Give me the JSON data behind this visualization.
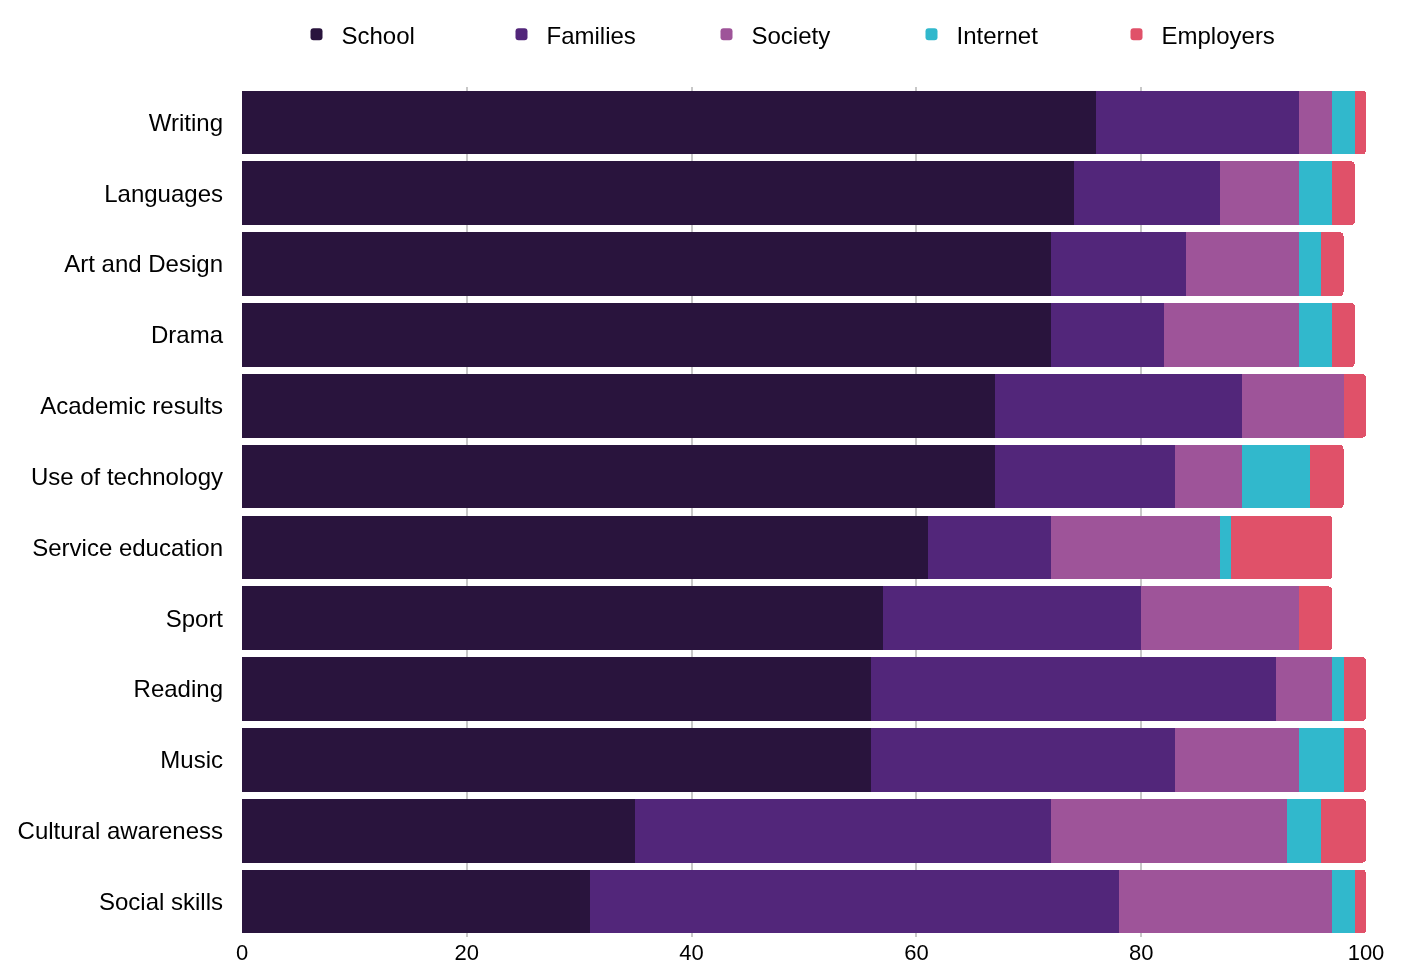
{
  "chart_data": {
    "type": "bar",
    "orientation": "horizontal",
    "stacked": true,
    "categories": [
      "Writing",
      "Languages",
      "Art and Design",
      "Drama",
      "Academic results",
      "Use of technology",
      "Service education",
      "Sport",
      "Reading",
      "Music",
      "Cultural awareness",
      "Social skills"
    ],
    "series": [
      {
        "name": "School",
        "color": "#29143d",
        "values": [
          76,
          74,
          72,
          72,
          67,
          67,
          61,
          57,
          56,
          56,
          35,
          31
        ]
      },
      {
        "name": "Families",
        "color": "#52267a",
        "values": [
          18,
          13,
          12,
          10,
          22,
          16,
          11,
          23,
          36,
          27,
          37,
          47
        ]
      },
      {
        "name": "Society",
        "color": "#9e5499",
        "values": [
          3,
          7,
          10,
          12,
          9,
          6,
          15,
          14,
          5,
          11,
          21,
          19
        ]
      },
      {
        "name": "Internet",
        "color": "#31b8cc",
        "values": [
          2,
          3,
          2,
          3,
          null,
          6,
          1,
          null,
          1,
          4,
          3,
          2
        ]
      },
      {
        "name": "Employers",
        "color": "#e05169",
        "values": [
          1,
          2,
          2,
          2,
          2,
          3,
          9,
          3,
          2,
          2,
          4,
          1
        ]
      }
    ],
    "xlim": [
      0,
      100
    ],
    "xticks": [
      0,
      20,
      40,
      60,
      80,
      100
    ],
    "grid": "x",
    "legend": "top"
  }
}
